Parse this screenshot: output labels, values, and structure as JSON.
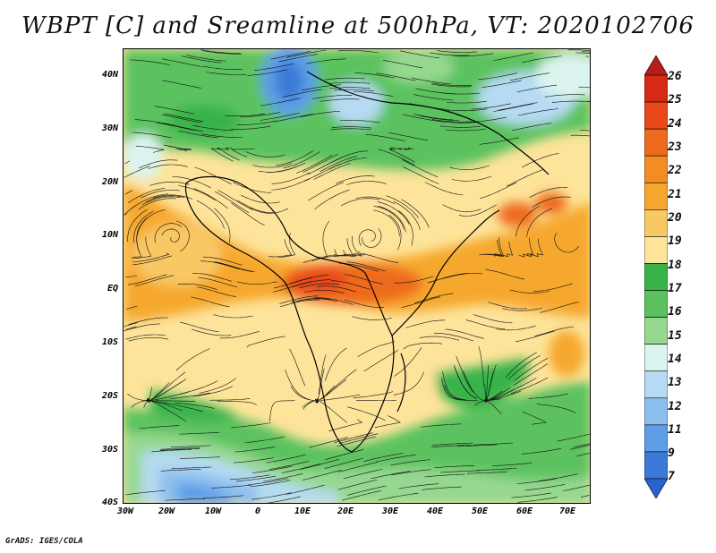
{
  "title": "WBPT [C] and Sreamline at 500hPa, VT: 2020102706",
  "footer": "GrADS: IGES/COLA",
  "map": {
    "lat_labels": [
      "40N",
      "30N",
      "20N",
      "10N",
      "EQ",
      "10S",
      "20S",
      "30S",
      "40S"
    ],
    "lon_labels": [
      "30W",
      "20W",
      "10W",
      "0",
      "10E",
      "20E",
      "30E",
      "40E",
      "50E",
      "60E",
      "70E"
    ]
  },
  "colorbar": {
    "labels": [
      "26",
      "25",
      "24",
      "23",
      "22",
      "21",
      "20",
      "19",
      "18",
      "17",
      "16",
      "15",
      "14",
      "13",
      "12",
      "11",
      "9",
      "7"
    ],
    "colors": [
      "#b81c1c",
      "#d62a14",
      "#e8481a",
      "#ee6a1c",
      "#f38c22",
      "#f6a82e",
      "#f8c865",
      "#fde49a",
      "#37b34a",
      "#5bc25e",
      "#96d890",
      "#dcf4ef",
      "#b6daf2",
      "#8dc0ee",
      "#5e9ee6",
      "#3b7ad8",
      "#2a62cc"
    ]
  }
}
